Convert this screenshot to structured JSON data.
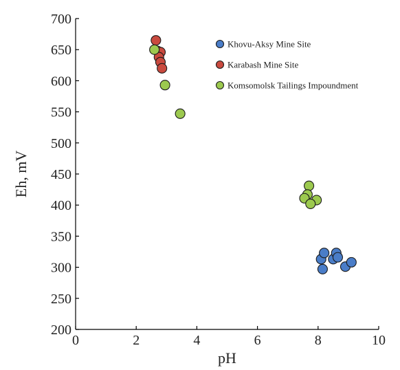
{
  "chart_data": {
    "type": "scatter",
    "xlabel": "pH",
    "ylabel": "Eh, mV",
    "xlim": [
      0,
      10
    ],
    "ylim": [
      200,
      700
    ],
    "xticks": [
      0,
      2,
      4,
      6,
      8,
      10
    ],
    "yticks": [
      200,
      250,
      300,
      350,
      400,
      450,
      500,
      550,
      600,
      650,
      700
    ],
    "grid": false,
    "legend_position": "top-right",
    "series": [
      {
        "name": "Khovu-Aksy Mine Site",
        "color": "#4a7dc8",
        "points": [
          {
            "x": 8.1,
            "y": 313
          },
          {
            "x": 8.2,
            "y": 323
          },
          {
            "x": 8.15,
            "y": 297
          },
          {
            "x": 8.5,
            "y": 313
          },
          {
            "x": 8.6,
            "y": 323
          },
          {
            "x": 8.65,
            "y": 316
          },
          {
            "x": 8.9,
            "y": 301
          },
          {
            "x": 9.1,
            "y": 308
          }
        ]
      },
      {
        "name": "Karabash Mine Site",
        "color": "#c94a3f",
        "points": [
          {
            "x": 2.65,
            "y": 665
          },
          {
            "x": 2.7,
            "y": 648
          },
          {
            "x": 2.8,
            "y": 646
          },
          {
            "x": 2.75,
            "y": 638
          },
          {
            "x": 2.8,
            "y": 630
          },
          {
            "x": 2.85,
            "y": 620
          }
        ]
      },
      {
        "name": "Komsomolsk Tailings Impoundment",
        "color": "#9cc94f",
        "points": [
          {
            "x": 2.6,
            "y": 650
          },
          {
            "x": 2.95,
            "y": 593
          },
          {
            "x": 3.45,
            "y": 547
          },
          {
            "x": 7.7,
            "y": 431
          },
          {
            "x": 7.65,
            "y": 417
          },
          {
            "x": 7.55,
            "y": 411
          },
          {
            "x": 7.95,
            "y": 408
          },
          {
            "x": 7.75,
            "y": 402
          }
        ]
      }
    ]
  }
}
